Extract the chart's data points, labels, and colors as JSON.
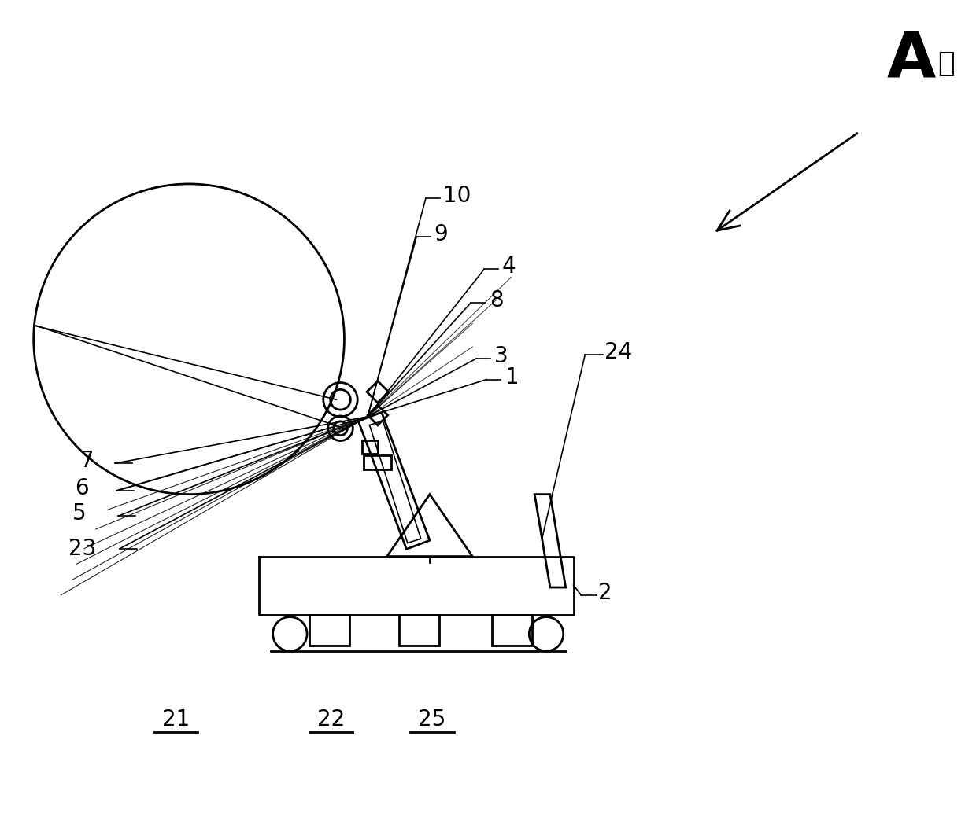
{
  "bg_color": "#ffffff",
  "line_color": "#000000",
  "title_text": "A向",
  "fig_width": 12.4,
  "fig_height": 10.53,
  "dpi": 100
}
